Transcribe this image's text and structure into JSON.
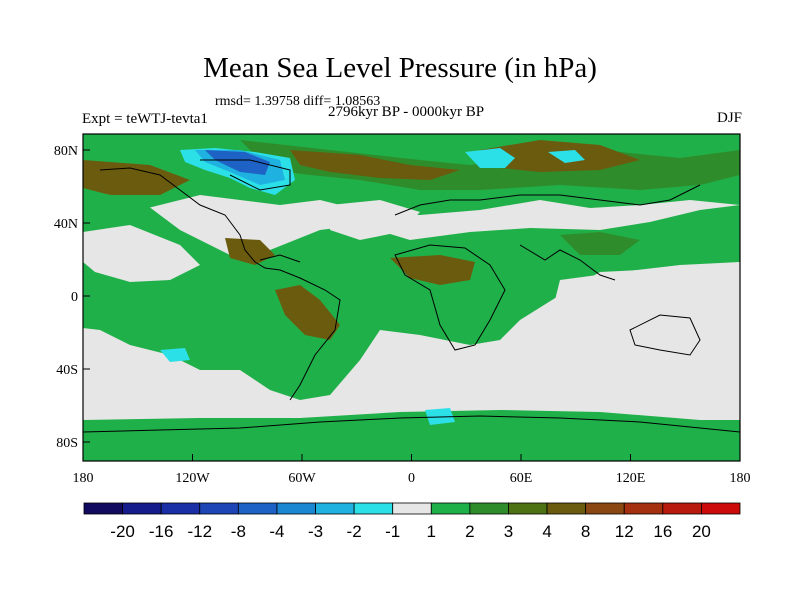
{
  "title": "Mean Sea Level Pressure (in hPa)",
  "stats": "rmsd= 1.39758  diff= 1.08563",
  "experiment": "Expt = teWTJ-tevta1",
  "period": "2796kyr BP - 0000kyr BP",
  "season": "DJF",
  "y_ticks": [
    "80N",
    "40N",
    "0",
    "40S",
    "80S"
  ],
  "x_ticks": [
    "180",
    "120W",
    "60W",
    "0",
    "60E",
    "120E",
    "180"
  ],
  "colorbar": {
    "labels": [
      "-20",
      "-16",
      "-12",
      "-8",
      "-4",
      "-3",
      "-2",
      "-1",
      "1",
      "2",
      "3",
      "4",
      "8",
      "12",
      "16",
      "20"
    ],
    "colors": [
      "#120a5e",
      "#171c8c",
      "#1a2fa6",
      "#1d45b6",
      "#1d62c4",
      "#1b86d2",
      "#1fb2e0",
      "#2ce0e8",
      "#e6e6e6",
      "#20b04a",
      "#2e8c2b",
      "#4d7214",
      "#6b5b0e",
      "#8a4712",
      "#a4300f",
      "#b81a0e",
      "#cc0a0a"
    ]
  },
  "map": {
    "lon_range": [
      -180,
      180
    ],
    "lat_range": [
      -90,
      90
    ],
    "background_colors": {
      "ocean": "#e6e6e6",
      "pos1": "#20b04a",
      "pos2": "#2e8c2b",
      "pos3": "#6b5b0e",
      "neg1": "#2ce0e8",
      "neg2": "#1fb2e0",
      "neg3": "#1d62c4"
    }
  }
}
